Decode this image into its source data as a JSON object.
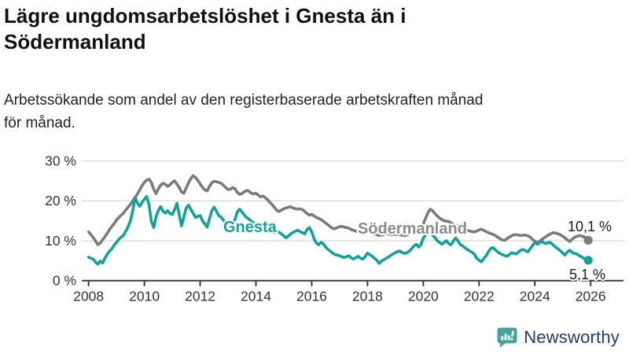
{
  "title": {
    "lines": [
      "Lägre ungdomsarbetslöshet i Gnesta än i",
      "Södermanland"
    ]
  },
  "subtitle": {
    "lines": [
      "Arbetssökande som andel av den registerbaserade arbetskraften månad",
      "för månad."
    ]
  },
  "branding": {
    "logo_text": "Newsworthy",
    "logo_icon": "bar-chart-speech-bubble-icon",
    "logo_icon_color": "#43a49e",
    "logo_text_color": "#1e3c64"
  },
  "chart_data": {
    "type": "line",
    "title": "Lägre ungdomsarbetslöshet i Gnesta än i Södermanland",
    "subtitle": "Arbetssökande som andel av den registerbaserade arbetskraften månad för månad.",
    "y_unit": "%",
    "grid": "horizontal",
    "legend_position": "inline-labels",
    "x_axis": {
      "ticks": [
        2008,
        2010,
        2012,
        2014,
        2016,
        2018,
        2020,
        2022,
        2024,
        2026
      ],
      "range_years": [
        2008,
        2027.2
      ]
    },
    "y_axis": {
      "ticks": [
        {
          "value": 0,
          "label": "0 %"
        },
        {
          "value": 10,
          "label": "10 %"
        },
        {
          "value": 20,
          "label": "20 %"
        },
        {
          "value": 30,
          "label": "30 %"
        }
      ],
      "range": [
        0,
        32
      ]
    },
    "sampling": {
      "start_year": 2008,
      "start_month": 1,
      "step_months": 1
    },
    "series": [
      {
        "name": "Södermanland",
        "color": "#7b7b7b",
        "label_color": "#8c8c8c",
        "end_label": "10,1 %",
        "end_value": 10.1,
        "values": [
          12.2,
          11.5,
          10.8,
          9.9,
          9.0,
          9.4,
          10.2,
          11.0,
          11.8,
          12.8,
          13.6,
          14.3,
          15.2,
          15.8,
          16.4,
          16.9,
          17.7,
          18.4,
          19.1,
          20.0,
          20.8,
          21.7,
          22.7,
          23.8,
          24.6,
          25.2,
          25.4,
          24.6,
          22.9,
          21.8,
          23.0,
          23.9,
          24.4,
          24.1,
          23.6,
          24.0,
          24.6,
          25.0,
          24.2,
          23.3,
          22.2,
          21.9,
          23.2,
          24.5,
          25.6,
          26.3,
          25.8,
          25.1,
          24.2,
          23.4,
          22.7,
          22.5,
          23.6,
          24.5,
          24.9,
          24.8,
          24.6,
          24.4,
          23.9,
          23.3,
          22.8,
          22.9,
          23.3,
          23.0,
          22.1,
          21.6,
          21.8,
          22.3,
          22.6,
          22.4,
          21.9,
          21.7,
          21.9,
          21.4,
          21.0,
          21.2,
          20.8,
          20.3,
          19.6,
          19.0,
          18.3,
          17.6,
          17.3,
          17.7,
          18.0,
          18.2,
          18.4,
          18.5,
          18.2,
          18.0,
          17.9,
          18.0,
          17.8,
          17.3,
          16.8,
          16.4,
          16.6,
          16.2,
          15.8,
          15.6,
          15.3,
          14.9,
          14.4,
          14.0,
          13.5,
          13.1,
          13.0,
          13.3,
          13.5,
          13.6,
          13.4,
          13.3,
          13.1,
          12.8,
          12.6,
          12.4,
          12.3,
          12.4,
          12.5,
          12.7,
          12.9,
          12.5,
          12.1,
          11.8,
          11.5,
          11.3,
          11.4,
          11.6,
          11.7,
          11.7,
          11.6,
          11.6,
          11.6,
          11.6,
          11.5,
          11.4,
          11.3,
          11.5,
          11.7,
          11.9,
          12.1,
          12.3,
          12.6,
          13.2,
          14.2,
          15.6,
          17.0,
          17.9,
          17.5,
          16.8,
          16.2,
          15.7,
          15.3,
          15.0,
          14.9,
          14.8,
          14.4,
          14.1,
          13.8,
          13.6,
          13.3,
          13.0,
          12.8,
          12.6,
          12.4,
          12.3,
          12.2,
          12.4,
          12.7,
          12.9,
          12.6,
          12.3,
          12.0,
          11.8,
          11.6,
          11.3,
          10.9,
          10.5,
          10.2,
          10.1,
          10.5,
          10.9,
          11.2,
          11.5,
          11.5,
          11.4,
          11.3,
          11.4,
          11.4,
          11.2,
          10.9,
          10.3,
          9.9,
          9.6,
          9.8,
          10.3,
          10.7,
          11.1,
          11.5,
          11.8,
          12.0,
          11.9,
          11.7,
          11.5,
          11.1,
          10.7,
          10.2,
          9.8,
          10.3,
          10.8,
          11.1,
          11.3,
          11.2,
          11.0,
          10.7,
          10.1
        ]
      },
      {
        "name": "Gnesta",
        "color": "#11a39a",
        "label_color": "#11a39a",
        "end_label": "5,1 %",
        "end_value": 5.1,
        "values": [
          5.9,
          5.6,
          5.4,
          4.6,
          4.1,
          4.9,
          4.4,
          5.6,
          6.6,
          7.4,
          8.0,
          8.9,
          9.6,
          10.3,
          10.9,
          11.3,
          12.4,
          13.5,
          15.0,
          17.5,
          20.9,
          19.4,
          18.6,
          19.6,
          20.4,
          21.1,
          18.9,
          14.8,
          13.3,
          15.9,
          17.6,
          18.5,
          17.4,
          16.9,
          17.5,
          16.8,
          16.6,
          17.8,
          19.4,
          16.5,
          13.7,
          16.0,
          18.2,
          18.9,
          17.8,
          16.9,
          15.8,
          16.1,
          16.3,
          15.0,
          14.2,
          13.4,
          15.5,
          17.5,
          18.4,
          17.4,
          16.3,
          15.9,
          15.2,
          14.2,
          13.8,
          13.7,
          14.2,
          15.4,
          17.2,
          17.9,
          17.2,
          16.4,
          15.8,
          15.4,
          14.9,
          14.4,
          13.9,
          13.4,
          13.0,
          12.7,
          12.4,
          12.3,
          12.6,
          12.2,
          12.0,
          12.3,
          12.1,
          11.7,
          11.2,
          10.7,
          11.2,
          11.7,
          12.1,
          12.4,
          12.6,
          12.3,
          12.0,
          11.7,
          12.8,
          13.3,
          12.2,
          10.5,
          9.4,
          9.0,
          9.6,
          9.2,
          8.4,
          7.8,
          7.4,
          6.9,
          6.5,
          6.4,
          6.2,
          6.0,
          5.8,
          6.0,
          6.2,
          5.7,
          5.4,
          5.8,
          6.1,
          5.6,
          5.4,
          6.0,
          6.9,
          6.5,
          6.1,
          5.6,
          5.1,
          4.3,
          4.9,
          5.2,
          5.6,
          5.9,
          6.3,
          6.7,
          7.0,
          7.3,
          7.4,
          7.0,
          6.8,
          7.0,
          7.4,
          8.0,
          8.7,
          9.1,
          8.4,
          9.0,
          10.6,
          11.5,
          12.0,
          12.3,
          11.4,
          10.8,
          10.0,
          9.6,
          9.1,
          9.6,
          10.0,
          9.2,
          9.0,
          10.0,
          10.7,
          9.9,
          9.0,
          8.7,
          8.2,
          7.8,
          7.4,
          7.1,
          6.6,
          5.6,
          5.1,
          4.7,
          5.5,
          6.2,
          7.2,
          8.0,
          8.3,
          7.7,
          7.2,
          6.8,
          6.5,
          6.3,
          6.1,
          6.5,
          7.0,
          6.8,
          6.7,
          7.2,
          7.6,
          7.8,
          7.5,
          7.2,
          8.0,
          8.8,
          9.6,
          9.1,
          9.4,
          9.9,
          9.4,
          9.3,
          9.6,
          9.4,
          8.9,
          8.4,
          7.9,
          7.5,
          6.9,
          6.4,
          7.2,
          7.6,
          7.1,
          6.8,
          6.7,
          6.3,
          6.0,
          5.6,
          5.3,
          5.1
        ]
      }
    ],
    "colors": {
      "gridline": "#d9d9d9",
      "axis": "#3a3a3a",
      "tick_text": "#333333"
    }
  }
}
